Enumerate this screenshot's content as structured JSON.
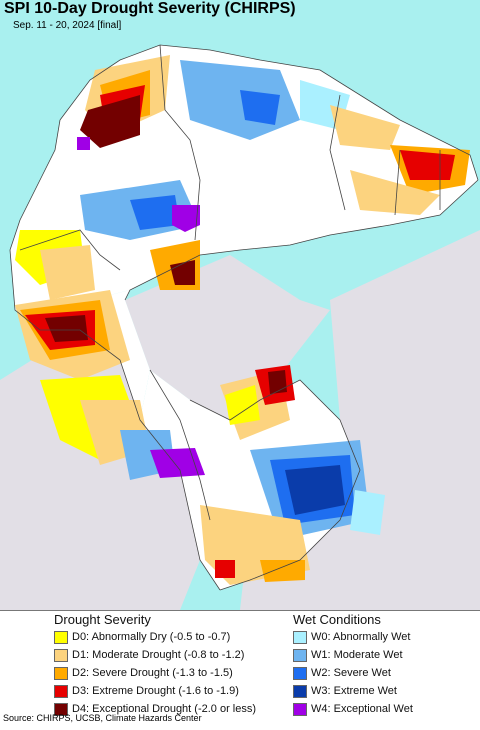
{
  "title": "SPI 10-Day Drought Severity (CHIRPS)",
  "subtitle": "Sep. 11 - 20, 2024 [final]",
  "map": {
    "colors": {
      "ocean": "#a9f0ef",
      "outside": "#e2dfe6",
      "land": "#ffffff",
      "border": "#444444"
    }
  },
  "legend": {
    "drought": {
      "heading": "Drought Severity",
      "items": [
        {
          "label": "D0: Abnormally Dry (-0.5 to -0.7)",
          "color": "#ffff00"
        },
        {
          "label": "D1: Moderate Drought (-0.8 to -1.2)",
          "color": "#fcd37f"
        },
        {
          "label": "D2: Severe Drought (-1.3 to -1.5)",
          "color": "#ffaa00"
        },
        {
          "label": "D3: Extreme Drought (-1.6 to -1.9)",
          "color": "#e60000"
        },
        {
          "label": "D4: Exceptional Drought (-2.0 or less)",
          "color": "#730000"
        }
      ]
    },
    "wet": {
      "heading": "Wet Conditions",
      "items": [
        {
          "label": "W0: Abnormally Wet",
          "color": "#aaf0ff"
        },
        {
          "label": "W1: Moderate Wet",
          "color": "#6eb4f0"
        },
        {
          "label": "W2: Severe Wet",
          "color": "#1e6ef0"
        },
        {
          "label": "W3: Extreme Wet",
          "color": "#0a3caa"
        },
        {
          "label": "W4: Exceptional Wet",
          "color": "#a000e6"
        }
      ]
    }
  },
  "source": "Source: CHIRPS, UCSB, Climate Hazards Center"
}
